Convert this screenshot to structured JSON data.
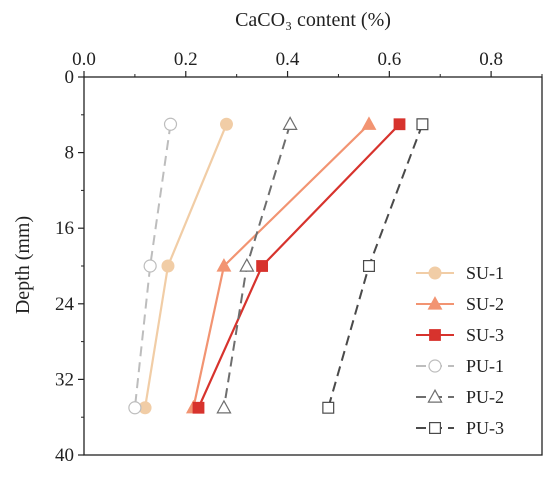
{
  "chart_data": {
    "type": "line",
    "xlabel": "CaCO₃ content (%)",
    "ylabel": "Depth (mm)",
    "xlim": [
      0,
      0.9
    ],
    "ylim": [
      40,
      0
    ],
    "x_axis_position": "top",
    "y_inverted": true,
    "grid": false,
    "legend_position": "bottom-right",
    "x_ticks": [
      "0.0",
      "0.2",
      "0.4",
      "0.6",
      "0.8"
    ],
    "y_ticks": [
      "0",
      "8",
      "16",
      "24",
      "32",
      "40"
    ],
    "depths": [
      5,
      20,
      35
    ],
    "series": [
      {
        "name": "SU-1",
        "x": [
          0.28,
          0.165,
          0.12
        ],
        "y": [
          5,
          20,
          35
        ],
        "color": "#f1cda6",
        "marker": "circle",
        "filled": true,
        "dashed": false
      },
      {
        "name": "SU-2",
        "x": [
          0.56,
          0.275,
          0.215
        ],
        "y": [
          5,
          20,
          35
        ],
        "color": "#f29472",
        "marker": "triangle",
        "filled": true,
        "dashed": false
      },
      {
        "name": "SU-3",
        "x": [
          0.62,
          0.35,
          0.225
        ],
        "y": [
          5,
          20,
          35
        ],
        "color": "#d7332d",
        "marker": "square",
        "filled": true,
        "dashed": false
      },
      {
        "name": "PU-1",
        "x": [
          0.17,
          0.13,
          0.1
        ],
        "y": [
          5,
          20,
          35
        ],
        "color": "#bdbdbd",
        "marker": "circle",
        "filled": false,
        "dashed": true
      },
      {
        "name": "PU-2",
        "x": [
          0.405,
          0.32,
          0.275
        ],
        "y": [
          5,
          20,
          35
        ],
        "color": "#6e6e6e",
        "marker": "triangle",
        "filled": false,
        "dashed": true
      },
      {
        "name": "PU-3",
        "x": [
          0.665,
          0.56,
          0.48
        ],
        "y": [
          5,
          20,
          35
        ],
        "color": "#4a4a4a",
        "marker": "square",
        "filled": false,
        "dashed": true
      }
    ]
  }
}
